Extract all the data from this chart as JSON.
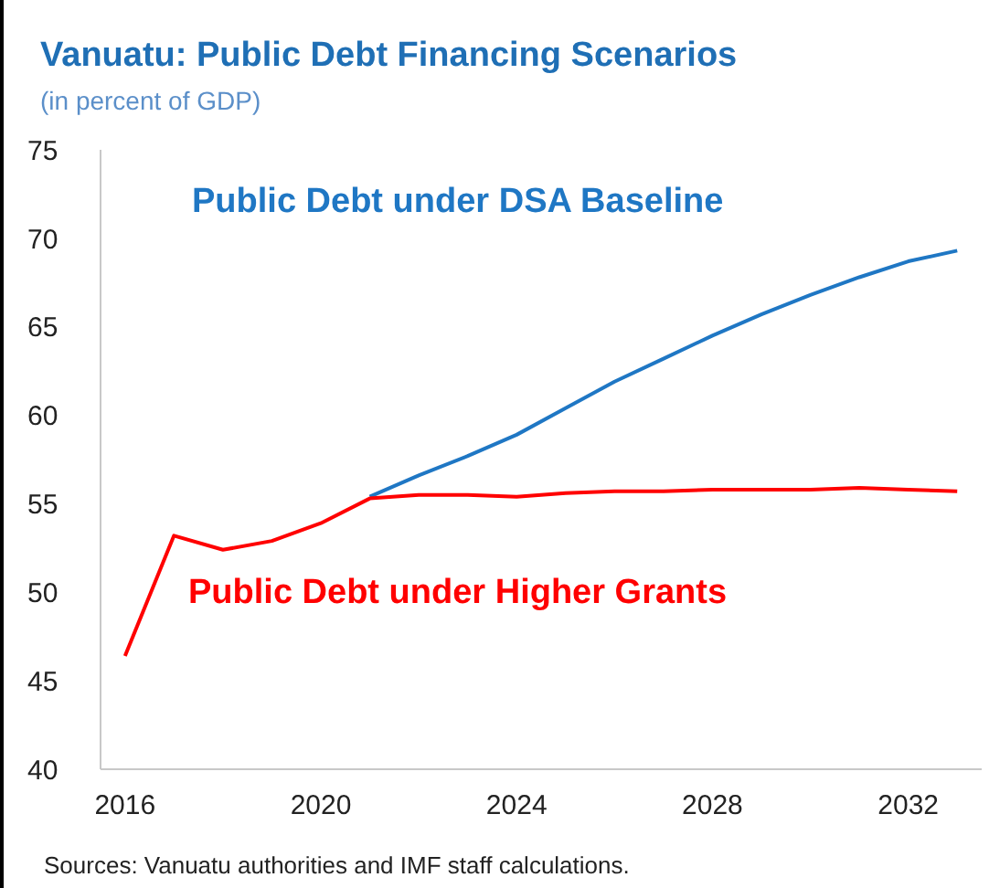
{
  "chart_data": {
    "type": "line",
    "title": "Vanuatu: Public Debt Financing Scenarios",
    "subtitle": "(in percent of GDP)",
    "x": [
      2016,
      2017,
      2018,
      2019,
      2020,
      2021,
      2022,
      2023,
      2024,
      2025,
      2026,
      2027,
      2028,
      2029,
      2030,
      2031,
      2032,
      2033
    ],
    "series": [
      {
        "name": "Public Debt under DSA Baseline",
        "color": "#1f77c4",
        "values": [
          null,
          null,
          null,
          null,
          null,
          55.4,
          56.6,
          57.7,
          58.9,
          60.4,
          61.9,
          63.2,
          64.5,
          65.7,
          66.8,
          67.8,
          68.7,
          69.3
        ]
      },
      {
        "name": "Public Debt under Higher Grants",
        "color": "#ff0000",
        "values": [
          46.4,
          53.2,
          52.4,
          52.9,
          53.9,
          55.3,
          55.5,
          55.5,
          55.4,
          55.6,
          55.7,
          55.7,
          55.8,
          55.8,
          55.8,
          55.9,
          55.8,
          55.7
        ]
      }
    ],
    "xlim": [
      2015.5,
      2033.5
    ],
    "xticks": [
      2016,
      2020,
      2024,
      2028,
      2032
    ],
    "ylim": [
      40,
      75
    ],
    "yticks": [
      40,
      45,
      50,
      55,
      60,
      65,
      70,
      75
    ],
    "marker": "none",
    "line_style": "solid",
    "annotations": [
      "Sources: Vanuatu authorities and IMF staff calculations."
    ]
  }
}
